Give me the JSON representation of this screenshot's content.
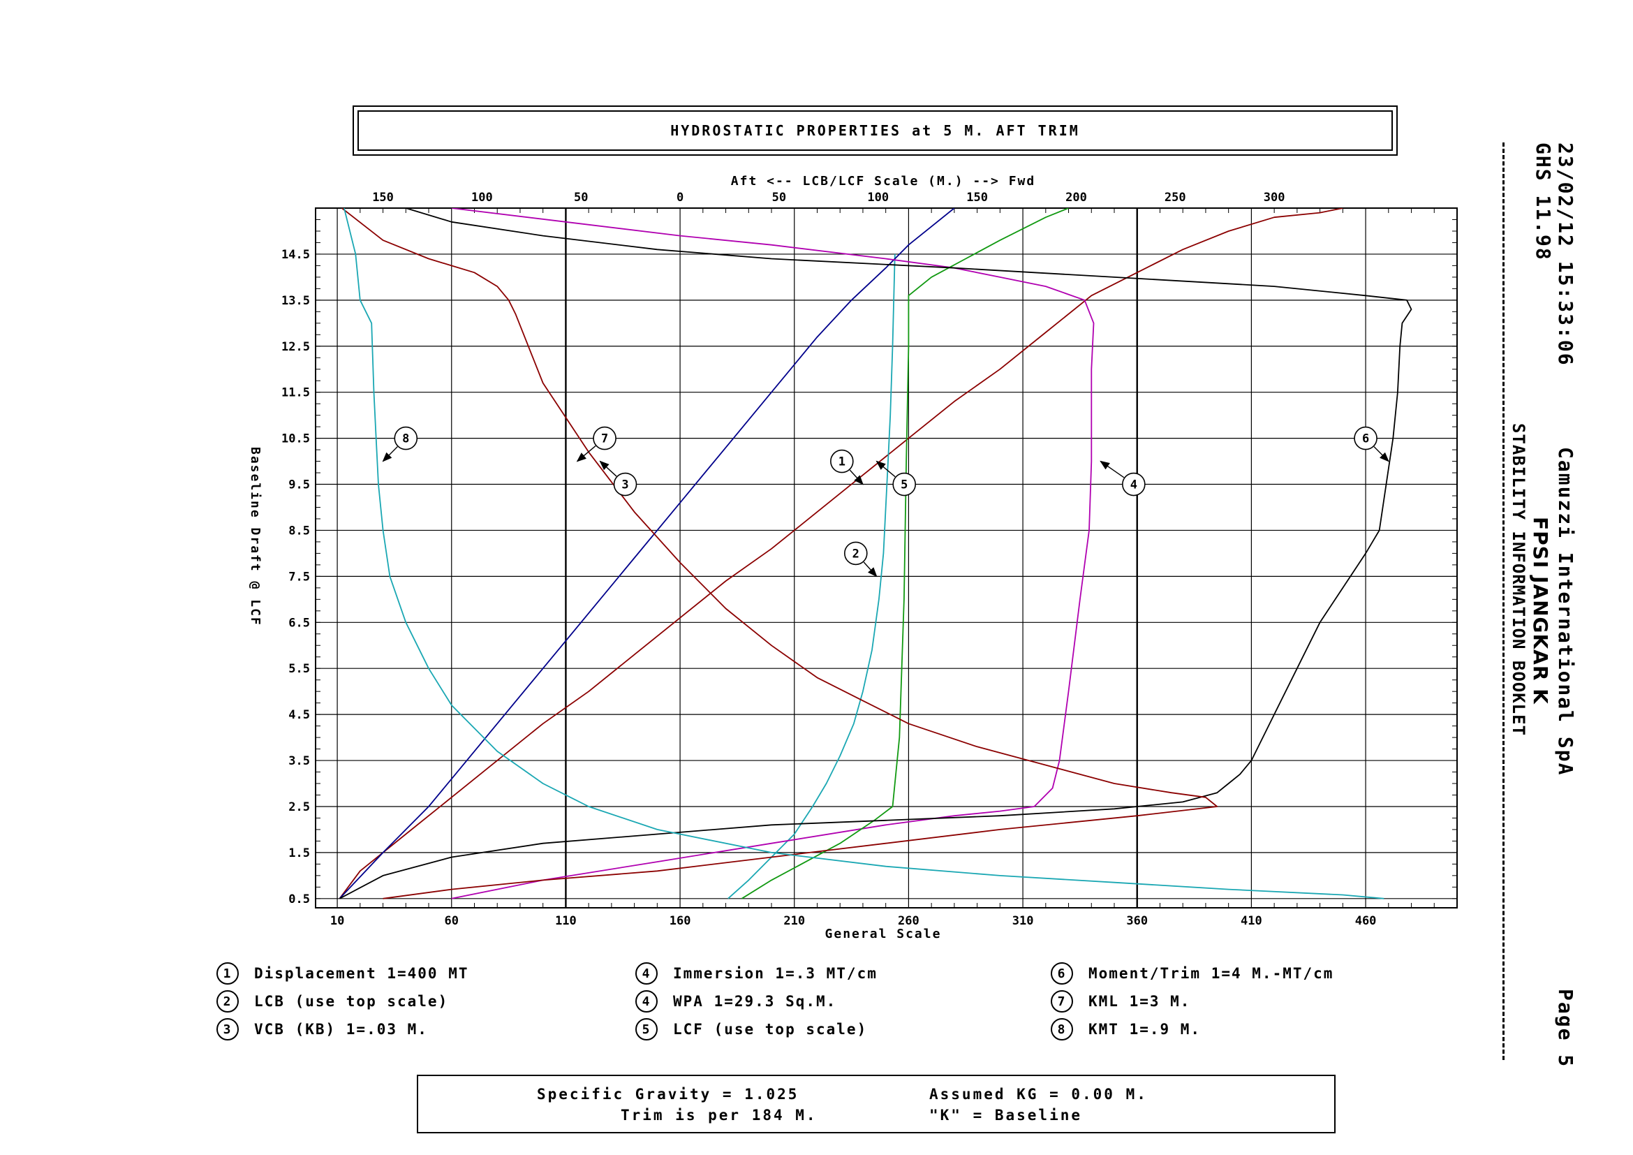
{
  "header": {
    "title": "HYDROSTATIC PROPERTIES at 5 M. AFT TRIM"
  },
  "side_info": {
    "datetime": "23/02/12 15:33:06",
    "software": "GHS 11.98",
    "company": "Camuzzi International SpA",
    "vessel": "FPSI JANGKAR K",
    "booklet": "STABILITY INFORMATION BOOKLET",
    "page": "Page 5"
  },
  "legend": {
    "items": [
      {
        "num": "1",
        "label": "Displacement 1=400 MT"
      },
      {
        "num": "2",
        "label": "LCB (use top scale)"
      },
      {
        "num": "3",
        "label": "VCB (KB) 1=.03 M."
      },
      {
        "num": "4",
        "label": "Immersion 1=.3 MT/cm"
      },
      {
        "num": "4",
        "label": "WPA 1=29.3 Sq.M."
      },
      {
        "num": "5",
        "label": "LCF (use top scale)"
      },
      {
        "num": "6",
        "label": "Moment/Trim 1=4 M.-MT/cm"
      },
      {
        "num": "7",
        "label": "KML 1=3 M."
      },
      {
        "num": "8",
        "label": "KMT 1=.9 M."
      }
    ]
  },
  "footer": {
    "line1_left": "Specific Gravity = 1.025",
    "line1_right": "Assumed KG = 0.00 M.",
    "line2_left": "Trim is per 184 M.",
    "line2_right": "\"K\" = Baseline"
  },
  "colors": {
    "displacement": "#8b0000",
    "lcb": "#1aa7b3",
    "vcb": "#00008b",
    "immersion": "#b000b0",
    "lcf": "#119911",
    "moment_trim": "#000000",
    "kml": "#8b0000",
    "kmt": "#1aa7b3"
  },
  "chart_data": {
    "type": "line",
    "top_axis_label": "Aft <-- LCB/LCF Scale (M.) --> Fwd",
    "top_ticks": [
      "150",
      "100",
      "50",
      "0",
      "50",
      "100",
      "150",
      "200",
      "250",
      "300"
    ],
    "top_tick_values": [
      -150,
      -100,
      -50,
      0,
      50,
      100,
      150,
      200,
      250,
      300
    ],
    "xlabel": "General Scale",
    "x_ticks": [
      "10",
      "60",
      "110",
      "160",
      "210",
      "260",
      "310",
      "360",
      "410",
      "460"
    ],
    "x_tick_values": [
      10,
      60,
      110,
      160,
      210,
      260,
      310,
      360,
      410,
      460
    ],
    "xlim": [
      0.5,
      500
    ],
    "ylabel": "Baseline Draft @ LCF",
    "y_ticks": [
      "0.5",
      "1.5",
      "2.5",
      "3.5",
      "4.5",
      "5.5",
      "6.5",
      "7.5",
      "8.5",
      "9.5",
      "10.5",
      "11.5",
      "12.5",
      "13.5",
      "14.5"
    ],
    "y_tick_values": [
      0.5,
      1.5,
      2.5,
      3.5,
      4.5,
      5.5,
      6.5,
      7.5,
      8.5,
      9.5,
      10.5,
      11.5,
      12.5,
      13.5,
      14.5
    ],
    "ylim": [
      0.3,
      15.5
    ],
    "grid": true,
    "series": [
      {
        "id": "1",
        "color_key": "displacement",
        "label_at": [
          230.8,
          10.0
        ],
        "arrow_to": [
          240,
          9.5
        ],
        "x": [
          11,
          20,
          40,
          60,
          80,
          100,
          120,
          140,
          160,
          180,
          200,
          220,
          240,
          260,
          280,
          300,
          320,
          340,
          360,
          380,
          400,
          420,
          440,
          450
        ],
        "y": [
          0.5,
          1.1,
          1.9,
          2.7,
          3.5,
          4.3,
          5.0,
          5.8,
          6.6,
          7.4,
          8.1,
          8.9,
          9.7,
          10.5,
          11.3,
          12.0,
          12.8,
          13.6,
          14.1,
          14.6,
          15.0,
          15.3,
          15.4,
          15.5
        ]
      },
      {
        "id": "2",
        "color_key": "lcb",
        "label_at": [
          236.9,
          8.0
        ],
        "arrow_to": [
          246,
          7.5
        ],
        "x": [
          181,
          190,
          200,
          210,
          218,
          224,
          230,
          236,
          240,
          244,
          247,
          249,
          250,
          251,
          252,
          253,
          254
        ],
        "y": [
          0.5,
          0.9,
          1.4,
          1.9,
          2.5,
          3.0,
          3.6,
          4.3,
          5.0,
          5.9,
          7.0,
          8.0,
          9.0,
          10.0,
          11.0,
          12.5,
          14.5
        ]
      },
      {
        "id": "3",
        "color_key": "vcb",
        "label_at": [
          136.0,
          9.5
        ],
        "arrow_to": [
          125,
          10.0
        ],
        "x": [
          11,
          30,
          50,
          60,
          80,
          100,
          120,
          140,
          160,
          180,
          200,
          220,
          235,
          250,
          260,
          270,
          280
        ],
        "y": [
          0.5,
          1.5,
          2.5,
          3.1,
          4.3,
          5.5,
          6.7,
          7.9,
          9.1,
          10.3,
          11.5,
          12.7,
          13.5,
          14.2,
          14.7,
          15.1,
          15.5
        ]
      },
      {
        "id": "4",
        "color_key": "immersion",
        "label_at": [
          358.5,
          9.5
        ],
        "arrow_to": [
          344,
          10.0
        ],
        "x": [
          60,
          100,
          150,
          200,
          250,
          280,
          300,
          315,
          323,
          326,
          330,
          335,
          339,
          340,
          340,
          341,
          337,
          320,
          300,
          280,
          250,
          200,
          160,
          110,
          60
        ],
        "y": [
          0.5,
          0.9,
          1.3,
          1.7,
          2.1,
          2.3,
          2.4,
          2.5,
          2.9,
          3.5,
          5.0,
          7.0,
          8.5,
          10.0,
          12.0,
          13.0,
          13.5,
          13.8,
          14.0,
          14.2,
          14.4,
          14.7,
          14.9,
          15.2,
          15.5
        ]
      },
      {
        "id": "5",
        "color_key": "lcf",
        "label_at": [
          258.1,
          9.5
        ],
        "arrow_to": [
          246,
          10.0
        ],
        "x": [
          187,
          200,
          215,
          230,
          245,
          253,
          256,
          258,
          259,
          260,
          260,
          260,
          260,
          270,
          285,
          300,
          320,
          330
        ],
        "y": [
          0.5,
          0.9,
          1.3,
          1.7,
          2.2,
          2.5,
          4.0,
          7.0,
          10.0,
          12.5,
          13.3,
          13.5,
          13.6,
          14.0,
          14.4,
          14.8,
          15.3,
          15.5
        ]
      },
      {
        "id": "6",
        "color_key": "moment_trim",
        "label_at": [
          460.0,
          10.5
        ],
        "arrow_to": [
          470,
          10.0
        ],
        "x": [
          11,
          30,
          60,
          100,
          150,
          200,
          250,
          300,
          350,
          380,
          395,
          400,
          405,
          410,
          420,
          440,
          460,
          466,
          469,
          472,
          474,
          475,
          476,
          480,
          478,
          460,
          420,
          350,
          280,
          200,
          150,
          100,
          60,
          40
        ],
        "y": [
          0.5,
          1.0,
          1.4,
          1.7,
          1.9,
          2.1,
          2.2,
          2.3,
          2.45,
          2.6,
          2.8,
          3.0,
          3.2,
          3.5,
          4.5,
          6.5,
          8.0,
          8.5,
          9.5,
          10.5,
          11.5,
          12.5,
          13.0,
          13.3,
          13.5,
          13.6,
          13.8,
          14.0,
          14.2,
          14.4,
          14.6,
          14.9,
          15.2,
          15.5
        ]
      },
      {
        "id": "7",
        "color_key": "kml",
        "label_at": [
          127.0,
          10.5
        ],
        "arrow_to": [
          115,
          10.0
        ],
        "x": [
          12,
          30,
          50,
          70,
          80,
          85,
          88,
          100,
          120,
          140,
          160,
          180,
          200,
          220,
          240,
          260,
          290,
          320,
          350,
          375,
          390,
          395,
          360,
          300,
          250,
          200,
          150,
          100,
          60,
          30
        ],
        "y": [
          15.5,
          14.8,
          14.4,
          14.1,
          13.8,
          13.5,
          13.2,
          11.7,
          10.2,
          8.9,
          7.8,
          6.8,
          6.0,
          5.3,
          4.8,
          4.3,
          3.8,
          3.4,
          3.0,
          2.8,
          2.7,
          2.5,
          2.3,
          2.0,
          1.7,
          1.4,
          1.1,
          0.9,
          0.7,
          0.5
        ]
      },
      {
        "id": "8",
        "color_key": "kmt",
        "label_at": [
          40.0,
          10.5
        ],
        "arrow_to": [
          30,
          10.0
        ],
        "x": [
          13,
          18,
          20,
          25,
          26,
          27,
          28,
          30,
          33,
          40,
          50,
          60,
          80,
          100,
          120,
          150,
          200,
          250,
          300,
          350,
          400,
          450,
          468
        ],
        "y": [
          15.5,
          14.5,
          13.5,
          13.0,
          11.5,
          10.5,
          9.5,
          8.5,
          7.5,
          6.5,
          5.5,
          4.7,
          3.7,
          3.0,
          2.5,
          2.0,
          1.5,
          1.2,
          1.0,
          0.85,
          0.7,
          0.58,
          0.5
        ]
      }
    ]
  }
}
